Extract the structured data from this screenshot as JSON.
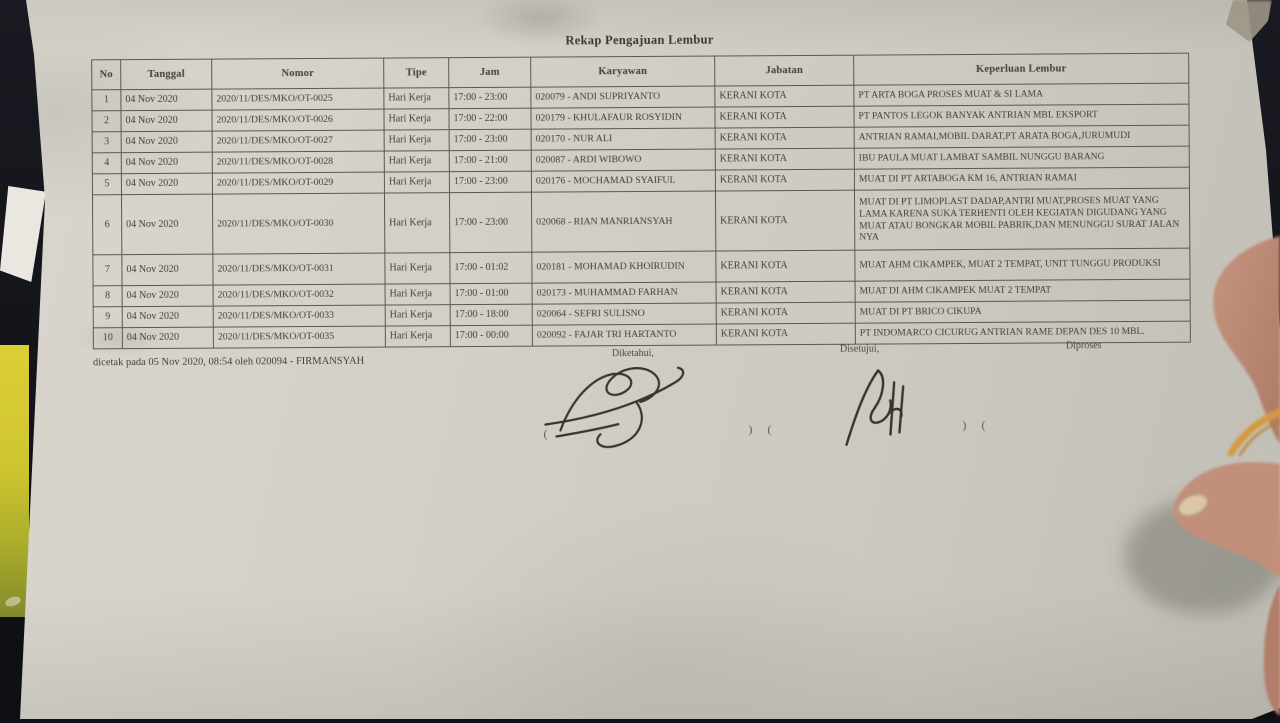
{
  "document": {
    "title": "Rekap Pengajuan Lembur",
    "table": {
      "headers": [
        "No",
        "Tanggal",
        "Nomor",
        "Tipe",
        "Jam",
        "Karyawan",
        "Jabatan",
        "Keperluan Lembur"
      ],
      "rows": [
        [
          "1",
          "04 Nov 2020",
          "2020/11/DES/MKO/OT-0025",
          "Hari Kerja",
          "17:00 - 23:00",
          "020079 - ANDI SUPRIYANTO",
          "KERANI KOTA",
          "PT ARTA BOGA PROSES MUAT & SI LAMA"
        ],
        [
          "2",
          "04 Nov 2020",
          "2020/11/DES/MKO/OT-0026",
          "Hari Kerja",
          "17:00 - 22:00",
          "020179 - KHULAFAUR ROSYIDIN",
          "KERANI KOTA",
          "PT PANTOS LEGOK BANYAK ANTRIAN MBL EKSPORT"
        ],
        [
          "3",
          "04 Nov 2020",
          "2020/11/DES/MKO/OT-0027",
          "Hari Kerja",
          "17:00 - 23:00",
          "020170 - NUR ALI",
          "KERANI KOTA",
          "ANTRIAN RAMAI,MOBIL DARAT,PT ARATA BOGA,JURUMUDI"
        ],
        [
          "4",
          "04 Nov 2020",
          "2020/11/DES/MKO/OT-0028",
          "Hari Kerja",
          "17:00 - 21:00",
          "020087 - ARDI WIBOWO",
          "KERANI KOTA",
          "IBU PAULA MUAT LAMBAT SAMBIL NUNGGU BARANG"
        ],
        [
          "5",
          "04 Nov 2020",
          "2020/11/DES/MKO/OT-0029",
          "Hari Kerja",
          "17:00 - 23:00",
          "020176 - MOCHAMAD SYAIFUL",
          "KERANI KOTA",
          "MUAT DI PT ARTABOGA KM 16, ANTRIAN RAMAI"
        ],
        [
          "6",
          "04 Nov 2020",
          "2020/11/DES/MKO/OT-0030",
          "Hari Kerja",
          "17:00 - 23:00",
          "020068 - RIAN MANRIANSYAH",
          "KERANI KOTA",
          "MUAT DI PT LIMOPLAST DADAP,ANTRI MUAT,PROSES MUAT YANG LAMA KARENA SUKA TERHENTI OLEH KEGIATAN DIGUDANG YANG MUAT ATAU BONGKAR MOBIL PABRIK,DAN MENUNGGU SURAT JALAN NYA"
        ],
        [
          "7",
          "04 Nov 2020",
          "2020/11/DES/MKO/OT-0031",
          "Hari Kerja",
          "17:00 - 01:02",
          "020181 - MOHAMAD KHOIRUDIN",
          "KERANI KOTA",
          "MUAT AHM CIKAMPEK, MUAT 2 TEMPAT, UNIT TUNGGU PRODUKSI"
        ],
        [
          "8",
          "04 Nov 2020",
          "2020/11/DES/MKO/OT-0032",
          "Hari Kerja",
          "17:00 - 01:00",
          "020173 - MUHAMMAD FARHAN",
          "KERANI KOTA",
          "MUAT DI AHM CIKAMPEK MUAT 2 TEMPAT"
        ],
        [
          "9",
          "04 Nov 2020",
          "2020/11/DES/MKO/OT-0033",
          "Hari Kerja",
          "17:00 - 18:00",
          "020064 - SEFRI SULISNO",
          "KERANI KOTA",
          "MUAT DI PT BRICO CIKUPA"
        ],
        [
          "10",
          "04 Nov 2020",
          "2020/11/DES/MKO/OT-0035",
          "Hari Kerja",
          "17:00 - 00:00",
          "020092 - FAJAR TRI HARTANTO",
          "KERANI KOTA",
          "PT INDOMARCO CICURUG ANTRIAN RAME DEPAN DES 10 MBL."
        ]
      ]
    },
    "printed_note": "dicetak pada 05 Nov 2020, 08:54 oleh 020094 - FIRMANSYAH",
    "signature_labels": {
      "known": "Diketahui,",
      "approved": "Disetujui,",
      "processed": "Diproses"
    },
    "paren_marks": [
      "(",
      ") (",
      ") ("
    ]
  },
  "photo": {
    "background_color": "#14151b",
    "paper_color": "#d3d0c8",
    "yellow_object_color": "#cfc52f",
    "skin_color": "#bd8a76",
    "rubber_band_color": "#d69940",
    "ink_color": "#26251f"
  }
}
